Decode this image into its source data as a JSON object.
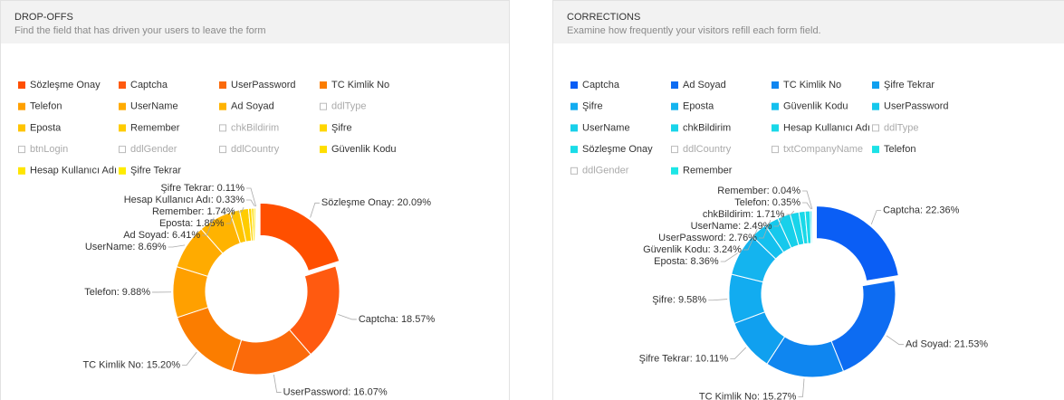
{
  "chart_data": [
    {
      "type": "donut",
      "title": "DROP-OFFS",
      "subtitle": "Find the field that has driven your users to leave the form",
      "categories": [
        "Sözleşme Onay",
        "Captcha",
        "UserPassword",
        "TC Kimlik No",
        "Telefon",
        "UserName",
        "Ad Soyad",
        "ddlType",
        "Eposta",
        "Remember",
        "chkBildirim",
        "Şifre",
        "btnLogin",
        "ddlGender",
        "ddlCountry",
        "Güvenlik Kodu",
        "Hesap Kullanıcı Adı",
        "Şifre Tekrar"
      ],
      "values": [
        20.09,
        18.57,
        16.07,
        15.2,
        9.88,
        8.69,
        6.41,
        null,
        1.85,
        1.74,
        null,
        0.6,
        null,
        null,
        null,
        0.46,
        0.33,
        0.11
      ],
      "value_labels": [
        "Sözleşme Onay: 20.09%",
        "Captcha: 18.57%",
        "UserPassword: 16.07%",
        "TC Kimlik No: 15.20%",
        "Telefon: 9.88%",
        "UserName: 8.69%",
        "Ad Soyad: 6.41%",
        null,
        "Eposta: 1.85%",
        "Remember: 1.74%",
        null,
        null,
        null,
        null,
        null,
        null,
        "Hesap Kullanıcı Adı: 0.33%",
        "Şifre Tekrar: 0.11%"
      ],
      "colors": [
        "#ff4f00",
        "#ff5a10",
        "#fb6a0a",
        "#fb7d00",
        "#ffa000",
        "#ffab00",
        "#ffb300",
        "#bbbbbb",
        "#ffc400",
        "#ffcc00",
        "#bbbbbb",
        "#ffd600",
        "#bbbbbb",
        "#bbbbbb",
        "#bbbbbb",
        "#ffde00",
        "#ffe500",
        "#ffec00"
      ]
    },
    {
      "type": "donut",
      "title": "CORRECTIONS",
      "subtitle": "Examine how frequently your visitors refill each form field.",
      "categories": [
        "Captcha",
        "Ad Soyad",
        "TC Kimlik No",
        "Şifre Tekrar",
        "Şifre",
        "Eposta",
        "Güvenlik Kodu",
        "UserPassword",
        "UserName",
        "chkBildirim",
        "Hesap Kullanıcı Adı",
        "ddlType",
        "Sözleşme Onay",
        "ddlCountry",
        "txtCompanyName",
        "Telefon",
        "ddlGender",
        "Remember"
      ],
      "values": [
        22.36,
        21.53,
        15.27,
        10.11,
        9.58,
        8.36,
        3.24,
        2.76,
        2.49,
        1.71,
        1.2,
        null,
        1.0,
        null,
        null,
        0.35,
        null,
        0.04
      ],
      "value_labels": [
        "Captcha: 22.36%",
        "Ad Soyad: 21.53%",
        "TC Kimlik No: 15.27%",
        "Şifre Tekrar: 10.11%",
        "Şifre: 9.58%",
        "Eposta: 8.36%",
        "Güvenlik Kodu: 3.24%",
        "UserPassword: 2.76%",
        "UserName: 2.49%",
        "chkBildirim: 1.71%",
        null,
        null,
        null,
        null,
        null,
        "Telefon: 0.35%",
        null,
        "Remember: 0.04%"
      ],
      "colors": [
        "#0a5ef5",
        "#0d6cf2",
        "#0f86f0",
        "#10a0ef",
        "#12acf0",
        "#14b4ef",
        "#14c0ee",
        "#16c8ec",
        "#18d0ea",
        "#18d4ea",
        "#19d8e8",
        "#bbbbbb",
        "#1adce8",
        "#bbbbbb",
        "#bbbbbb",
        "#1ce2e6",
        "#bbbbbb",
        "#1de6e6"
      ]
    }
  ]
}
